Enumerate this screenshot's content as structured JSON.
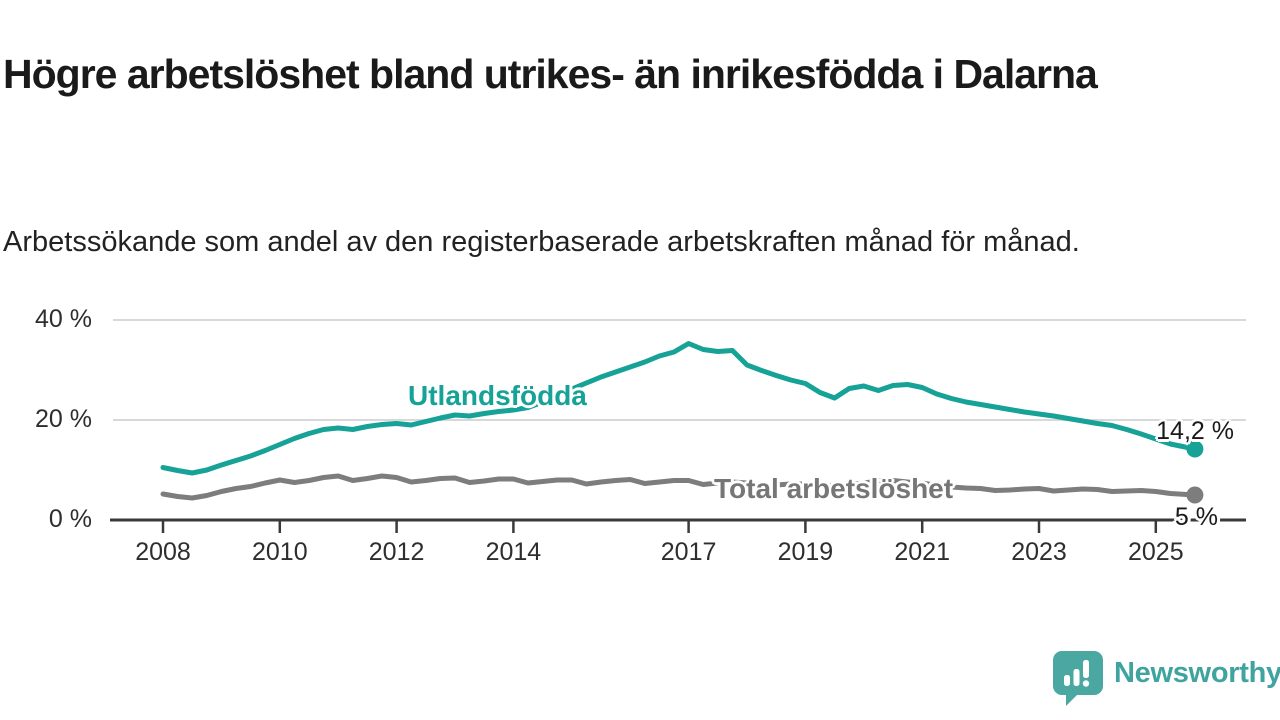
{
  "title": "Högre arbetslöshet bland utrikes- än inrikesfödda i Dalarna",
  "subtitle": "Arbetssökande som andel av den registerbaserade arbetskraften månad för månad.",
  "footer": {
    "brand": "Newsworthy",
    "logo_icon": "speech-bubble-bar-chart-icon",
    "brand_color": "#3fa3a0"
  },
  "colors": {
    "accent_teal": "#16a296",
    "line_gray": "#7d7d7d",
    "grid": "#d8d8d8",
    "axis": "#3a3a3a",
    "text": "#1a1a1a"
  },
  "chart_data": {
    "type": "line",
    "title": "Högre arbetslöshet bland utrikes- än inrikesfödda i Dalarna",
    "xlabel": "",
    "ylabel": "",
    "grid": "horizontal",
    "legend_position": "inline-labels",
    "x_axis": {
      "tick_values": [
        2008,
        2010,
        2012,
        2014,
        2017,
        2019,
        2021,
        2023,
        2025
      ],
      "tick_labels": [
        "2008",
        "2010",
        "2012",
        "2014",
        "2017",
        "2019",
        "2021",
        "2023",
        "2025"
      ],
      "range": [
        2007.1,
        2026.2
      ]
    },
    "y_axis": {
      "tick_values": [
        0,
        20,
        40
      ],
      "tick_labels": [
        "0 %",
        "20 %",
        "40 %"
      ],
      "range": [
        0,
        43
      ],
      "unit": "%"
    },
    "x": [
      2008.0,
      2008.25,
      2008.5,
      2008.75,
      2009.0,
      2009.25,
      2009.5,
      2009.75,
      2010.0,
      2010.25,
      2010.5,
      2010.75,
      2011.0,
      2011.25,
      2011.5,
      2011.75,
      2012.0,
      2012.25,
      2012.5,
      2012.75,
      2013.0,
      2013.25,
      2013.5,
      2013.75,
      2014.0,
      2014.25,
      2014.5,
      2014.75,
      2015.0,
      2015.25,
      2015.5,
      2015.75,
      2016.0,
      2016.25,
      2016.5,
      2016.75,
      2017.0,
      2017.25,
      2017.5,
      2017.75,
      2018.0,
      2018.25,
      2018.5,
      2018.75,
      2019.0,
      2019.25,
      2019.5,
      2019.75,
      2020.0,
      2020.25,
      2020.5,
      2020.75,
      2021.0,
      2021.25,
      2021.5,
      2021.75,
      2022.0,
      2022.25,
      2022.5,
      2022.75,
      2023.0,
      2023.25,
      2023.5,
      2023.75,
      2024.0,
      2024.25,
      2024.5,
      2024.75,
      2025.0,
      2025.25,
      2025.67
    ],
    "series": [
      {
        "name": "Utlandsfödda",
        "color": "#16a296",
        "end_label": "14,2 %",
        "end_value": 14.2,
        "values": [
          10.5,
          9.9,
          9.4,
          10.0,
          11.0,
          11.9,
          12.8,
          13.9,
          15.1,
          16.3,
          17.3,
          18.1,
          18.4,
          18.1,
          18.7,
          19.1,
          19.3,
          19.0,
          19.7,
          20.4,
          21.0,
          20.8,
          21.3,
          21.7,
          22.0,
          22.5,
          23.6,
          25.0,
          26.2,
          27.4,
          28.6,
          29.6,
          30.6,
          31.6,
          32.8,
          33.6,
          35.3,
          34.1,
          33.7,
          33.9,
          31.0,
          29.9,
          28.9,
          28.0,
          27.3,
          25.5,
          24.4,
          26.3,
          26.8,
          25.9,
          26.9,
          27.1,
          26.5,
          25.2,
          24.3,
          23.6,
          23.1,
          22.6,
          22.1,
          21.6,
          21.2,
          20.8,
          20.3,
          19.8,
          19.3,
          18.9,
          18.1,
          17.2,
          16.2,
          15.2,
          14.2
        ]
      },
      {
        "name": "Total arbetslöshet",
        "color": "#7d7d7d",
        "end_label": "5 %",
        "end_value": 5.0,
        "values": [
          5.2,
          4.7,
          4.4,
          4.9,
          5.7,
          6.3,
          6.7,
          7.4,
          8.0,
          7.5,
          7.9,
          8.5,
          8.8,
          7.9,
          8.3,
          8.8,
          8.5,
          7.6,
          7.9,
          8.3,
          8.4,
          7.5,
          7.8,
          8.2,
          8.2,
          7.4,
          7.7,
          8.0,
          8.0,
          7.2,
          7.6,
          7.9,
          8.1,
          7.3,
          7.6,
          7.9,
          7.9,
          7.1,
          7.4,
          7.6,
          7.4,
          6.7,
          7.0,
          7.2,
          7.2,
          6.6,
          6.9,
          7.1,
          7.4,
          7.8,
          7.9,
          7.6,
          7.4,
          6.9,
          6.6,
          6.4,
          6.3,
          5.9,
          6.0,
          6.2,
          6.3,
          5.8,
          6.0,
          6.2,
          6.1,
          5.7,
          5.8,
          5.9,
          5.7,
          5.3,
          5.0
        ]
      }
    ]
  }
}
